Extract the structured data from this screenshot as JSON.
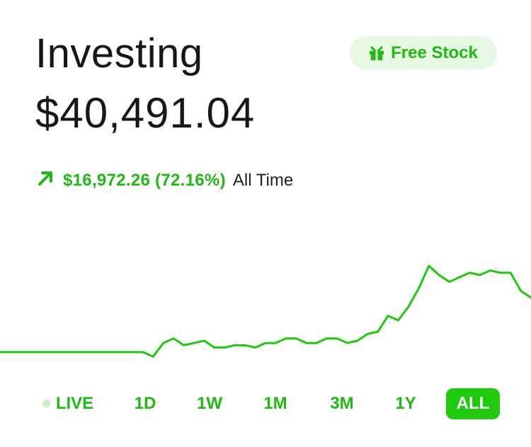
{
  "header": {
    "title": "Investing",
    "portfolio_value": "$40,491.04"
  },
  "promo": {
    "icon": "gift-icon",
    "label": "Free Stock"
  },
  "performance": {
    "direction_icon": "arrow-up-right-icon",
    "change": "$16,972.26 (72.16%)",
    "period": "All Time"
  },
  "colors": {
    "accent": "#1fc90e",
    "accent_text": "#1fb913",
    "promo_bg": "#e6f8e2",
    "text": "#14181d"
  },
  "chart_data": {
    "type": "line",
    "series": [
      {
        "values": [
          0,
          0,
          0,
          0,
          0,
          0,
          0,
          0,
          0,
          0,
          0,
          0,
          0,
          0,
          0,
          -2,
          4,
          6,
          3,
          4,
          5,
          2,
          2,
          3,
          3,
          2,
          4,
          4,
          6,
          6,
          4,
          4,
          6,
          6,
          4,
          5,
          8,
          9,
          16,
          14,
          20,
          28,
          38,
          34,
          31,
          33,
          35,
          34,
          36,
          35,
          35,
          27,
          24
        ]
      }
    ]
  },
  "ranges": {
    "items": [
      "LIVE",
      "1D",
      "1W",
      "1M",
      "3M",
      "1Y",
      "ALL"
    ],
    "selected": "ALL"
  }
}
